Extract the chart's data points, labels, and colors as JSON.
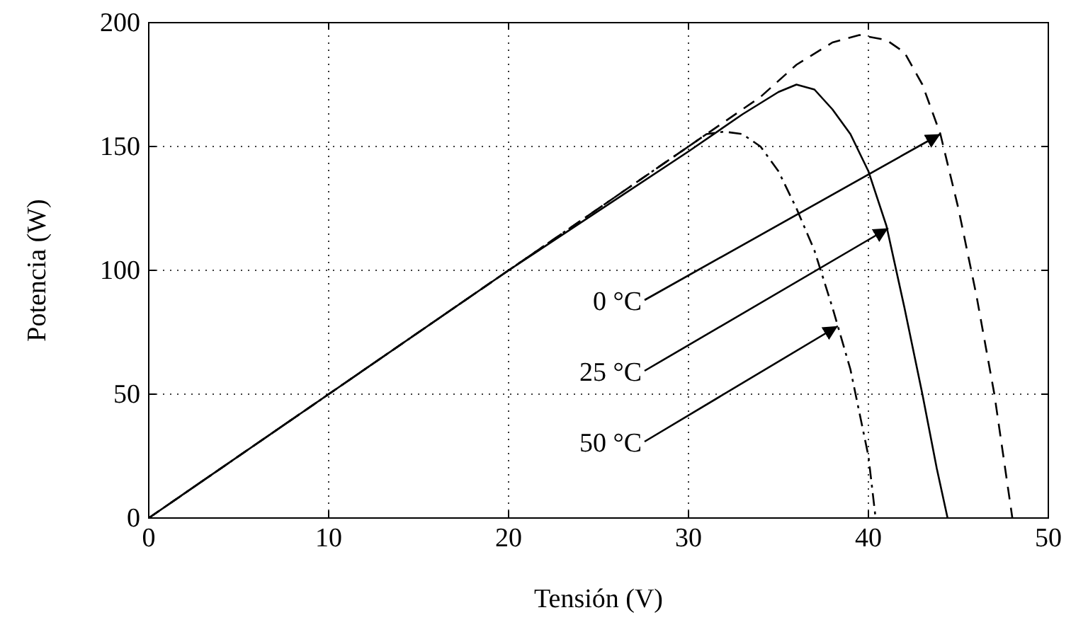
{
  "chart_data": {
    "type": "line",
    "xlabel": "Tensión (V)",
    "ylabel": "Potencia (W)",
    "xlim": [
      0,
      50
    ],
    "xticks": [
      0,
      10,
      20,
      30,
      40,
      50
    ],
    "ylim": [
      0,
      200
    ],
    "yticks": [
      0,
      50,
      100,
      150,
      200
    ],
    "grid": true,
    "series": [
      {
        "color": "#000000",
        "line_style": "solid",
        "x": [
          0,
          10,
          20,
          30,
          33,
          35,
          36,
          37,
          38,
          39,
          40,
          41,
          42,
          43,
          43.8,
          44.4
        ],
        "values": [
          0,
          50,
          100,
          148,
          163,
          172,
          175,
          173,
          165,
          155,
          140,
          118,
          85,
          50,
          20,
          0
        ]
      },
      {
        "color": "#000000",
        "line_style": "dashed",
        "x": [
          0,
          10,
          20,
          30,
          34,
          36,
          38,
          39.5,
          41,
          42,
          43,
          44,
          45,
          46,
          47,
          47.6,
          48
        ],
        "values": [
          0,
          50,
          100,
          150,
          170,
          183,
          192,
          195,
          193,
          188,
          175,
          155,
          125,
          90,
          50,
          20,
          0
        ]
      },
      {
        "color": "#000000",
        "line_style": "dashdot",
        "x": [
          0,
          10,
          20,
          28,
          30,
          31,
          32,
          33,
          34,
          35,
          36,
          37,
          38,
          39,
          40,
          40.4
        ],
        "values": [
          0,
          50,
          100,
          140,
          150,
          155,
          156,
          155,
          150,
          140,
          125,
          108,
          85,
          60,
          25,
          0
        ]
      }
    ],
    "annotations": [
      {
        "text": "0 °C",
        "x": 44,
        "y": 155
      },
      {
        "text": "25 °C",
        "x": 41.1,
        "y": 117
      },
      {
        "text": "50 °C",
        "x": 38.3,
        "y": 77.5
      }
    ]
  }
}
